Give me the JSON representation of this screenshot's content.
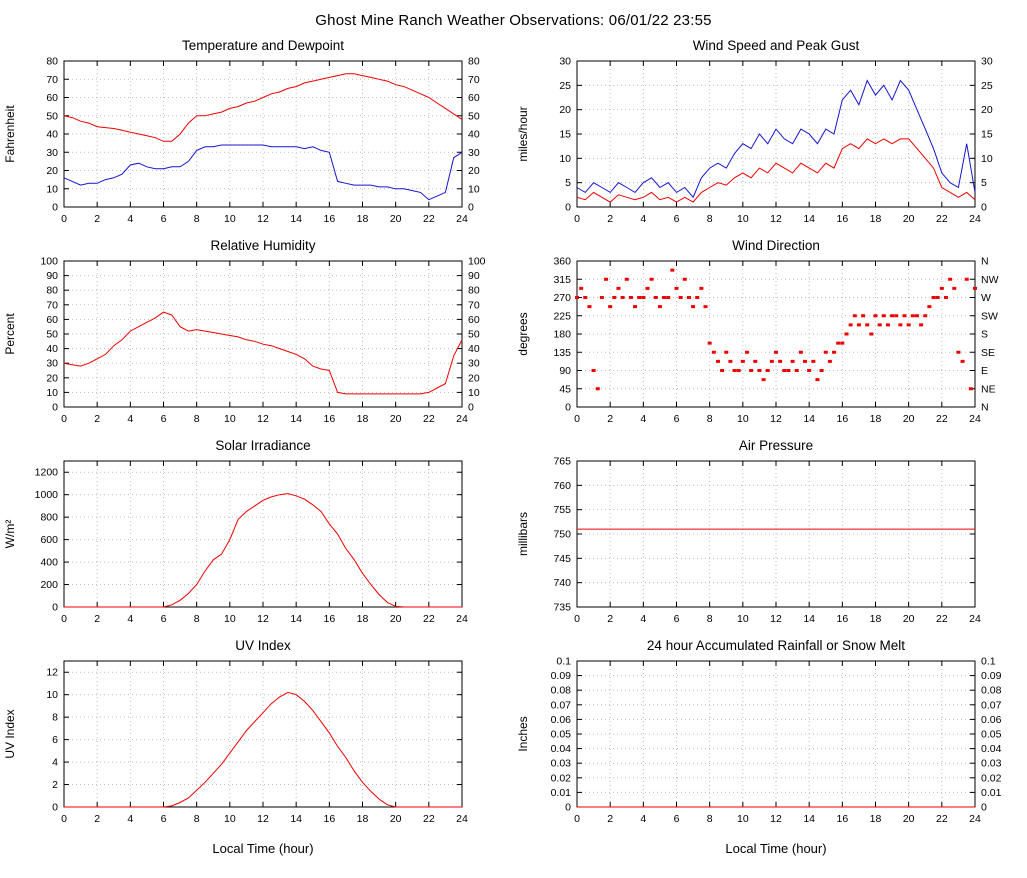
{
  "page_title": "Ghost Mine Ranch Weather Observations: 06/01/22 23:55",
  "x_axis_label": "Local Time (hour)",
  "colors": {
    "red": "#ee0000",
    "blue": "#1515d0",
    "grid": "#bdbdbd",
    "frame": "#000000",
    "text": "#000000"
  },
  "chart_data": [
    {
      "type": "line",
      "title": "Temperature and Dewpoint",
      "ylabel": "Fahrenheit",
      "xlim": [
        0,
        24
      ],
      "xticks": [
        0,
        2,
        4,
        6,
        8,
        10,
        12,
        14,
        16,
        18,
        20,
        22,
        24
      ],
      "ylim": [
        0,
        80
      ],
      "yticks": [
        0,
        10,
        20,
        30,
        40,
        50,
        60,
        70,
        80
      ],
      "mirror_y_labels": true,
      "show_xlabel": false,
      "series": [
        {
          "name": "Temperature",
          "color": "red",
          "x_step": 0.5,
          "y": [
            50,
            49,
            47,
            46,
            44,
            43.5,
            43,
            42,
            41,
            40,
            39,
            38,
            36,
            36,
            40,
            46,
            50,
            50,
            51,
            52,
            54,
            55,
            57,
            58,
            60,
            62,
            63,
            65,
            66,
            68,
            69,
            70,
            71,
            72,
            73,
            73,
            72,
            71,
            70,
            69,
            67,
            66,
            64,
            62,
            60,
            57,
            54,
            51,
            48
          ]
        },
        {
          "name": "Dewpoint",
          "color": "blue",
          "x_step": 0.5,
          "y": [
            16,
            14,
            12,
            13,
            13,
            15,
            16,
            18,
            23,
            24,
            22,
            21,
            21,
            22,
            22,
            25,
            31,
            33,
            33,
            34,
            34,
            34,
            34,
            34,
            34,
            33,
            33,
            33,
            33,
            32,
            33,
            31,
            30,
            14,
            13,
            12,
            12,
            12,
            11,
            11,
            10,
            10,
            9,
            8,
            4,
            6,
            8,
            27,
            30
          ]
        }
      ]
    },
    {
      "type": "line",
      "title": "Wind Speed and Peak Gust",
      "ylabel": "miles/hour",
      "xlim": [
        0,
        24
      ],
      "xticks": [
        0,
        2,
        4,
        6,
        8,
        10,
        12,
        14,
        16,
        18,
        20,
        22,
        24
      ],
      "ylim": [
        0,
        30
      ],
      "yticks": [
        0,
        5,
        10,
        15,
        20,
        25,
        30
      ],
      "mirror_y_labels": true,
      "show_xlabel": false,
      "series": [
        {
          "name": "Wind Speed",
          "color": "red",
          "x_step": 0.5,
          "y": [
            2,
            1.5,
            3,
            2,
            1,
            2.5,
            2,
            1.5,
            2,
            3,
            1.5,
            2,
            1,
            2,
            1,
            3,
            4,
            5,
            4.5,
            6,
            7,
            6,
            8,
            7,
            9,
            8,
            7,
            9,
            8,
            7,
            9,
            8,
            12,
            13,
            12,
            14,
            13,
            14,
            13,
            14,
            14,
            12,
            10,
            8,
            4,
            3,
            2,
            3,
            1.5
          ]
        },
        {
          "name": "Peak Gust",
          "color": "blue",
          "x_step": 0.5,
          "y": [
            4,
            3,
            5,
            4,
            3,
            5,
            4,
            3,
            5,
            6,
            4,
            5,
            3,
            4,
            2,
            6,
            8,
            9,
            8,
            11,
            13,
            12,
            15,
            13,
            16,
            14,
            13,
            16,
            15,
            13,
            16,
            15,
            22,
            24,
            21,
            26,
            23,
            25,
            22,
            26,
            24,
            20,
            16,
            12,
            7,
            5,
            4,
            13,
            3
          ]
        }
      ]
    },
    {
      "type": "line",
      "title": "Relative Humidity",
      "ylabel": "Percent",
      "xlim": [
        0,
        24
      ],
      "xticks": [
        0,
        2,
        4,
        6,
        8,
        10,
        12,
        14,
        16,
        18,
        20,
        22,
        24
      ],
      "ylim": [
        0,
        100
      ],
      "yticks": [
        0,
        10,
        20,
        30,
        40,
        50,
        60,
        70,
        80,
        90,
        100
      ],
      "mirror_y_labels": true,
      "show_xlabel": false,
      "series": [
        {
          "name": "Relative Humidity",
          "color": "red",
          "x_step": 0.5,
          "y": [
            30,
            29,
            28,
            30,
            33,
            36,
            42,
            46,
            52,
            55,
            58,
            61,
            65,
            63,
            55,
            52,
            53,
            52,
            51,
            50,
            49,
            48,
            46,
            45,
            43,
            42,
            40,
            38,
            36,
            33,
            28,
            26,
            25,
            10,
            9,
            9,
            9,
            9,
            9,
            9,
            9,
            9,
            9,
            9,
            10,
            13,
            16,
            35,
            46
          ]
        }
      ]
    },
    {
      "type": "scatter",
      "title": "Wind Direction",
      "ylabel": "degrees",
      "xlim": [
        0,
        24
      ],
      "xticks": [
        0,
        2,
        4,
        6,
        8,
        10,
        12,
        14,
        16,
        18,
        20,
        22,
        24
      ],
      "ylim": [
        0,
        360
      ],
      "yticks": [
        0,
        45,
        90,
        135,
        180,
        225,
        270,
        315,
        360
      ],
      "mirror_y_labels": false,
      "right_tick_labels": [
        "N",
        "NE",
        "E",
        "SE",
        "S",
        "SW",
        "W",
        "NW",
        "N"
      ],
      "show_xlabel": false,
      "series": [
        {
          "name": "Wind Direction",
          "color": "red",
          "x_step": 0.25,
          "y": [
            270,
            292.5,
            270,
            247.5,
            90,
            45,
            270,
            315,
            247.5,
            270,
            292.5,
            270,
            315,
            270,
            247.5,
            270,
            270,
            292.5,
            315,
            270,
            247.5,
            270,
            270,
            337.5,
            292.5,
            270,
            315,
            270,
            247.5,
            270,
            292.5,
            247.5,
            157.5,
            135,
            112.5,
            90,
            135,
            112.5,
            90,
            90,
            112.5,
            135,
            90,
            112.5,
            90,
            67.5,
            90,
            112.5,
            135,
            112.5,
            90,
            90,
            112.5,
            90,
            135,
            112.5,
            90,
            112.5,
            67.5,
            90,
            135,
            112.5,
            135,
            157.5,
            157.5,
            180,
            202.5,
            225,
            202.5,
            225,
            202.5,
            180,
            225,
            202.5,
            225,
            202.5,
            225,
            225,
            202.5,
            225,
            202.5,
            225,
            225,
            202.5,
            225,
            247.5,
            270,
            270,
            292.5,
            270,
            315,
            292.5,
            135,
            112.5,
            315,
            45,
            292.5
          ]
        }
      ]
    },
    {
      "type": "line",
      "title": "Solar Irradiance",
      "ylabel": "W/m²",
      "xlim": [
        0,
        24
      ],
      "xticks": [
        0,
        2,
        4,
        6,
        8,
        10,
        12,
        14,
        16,
        18,
        20,
        22,
        24
      ],
      "ylim": [
        0,
        1300
      ],
      "yticks": [
        0,
        200,
        400,
        600,
        800,
        1000,
        1200
      ],
      "mirror_y_labels": false,
      "show_xlabel": false,
      "series": [
        {
          "name": "Solar Irradiance",
          "color": "red",
          "x_step": 0.5,
          "y": [
            0,
            0,
            0,
            0,
            0,
            0,
            0,
            0,
            0,
            0,
            0,
            0,
            0,
            20,
            60,
            120,
            200,
            320,
            420,
            470,
            600,
            780,
            850,
            900,
            950,
            980,
            1000,
            1010,
            990,
            960,
            910,
            850,
            740,
            650,
            520,
            420,
            300,
            200,
            110,
            40,
            5,
            0,
            0,
            0,
            0,
            0,
            0,
            0,
            0
          ]
        }
      ]
    },
    {
      "type": "line",
      "title": "Air Pressure",
      "ylabel": "millibars",
      "xlim": [
        0,
        24
      ],
      "xticks": [
        0,
        2,
        4,
        6,
        8,
        10,
        12,
        14,
        16,
        18,
        20,
        22,
        24
      ],
      "ylim": [
        735,
        765
      ],
      "yticks": [
        735,
        740,
        745,
        750,
        755,
        760,
        765
      ],
      "mirror_y_labels": false,
      "show_xlabel": false,
      "series": [
        {
          "name": "Air Pressure",
          "color": "red",
          "x_step": 24,
          "y": [
            751,
            751
          ]
        }
      ]
    },
    {
      "type": "line",
      "title": "UV Index",
      "ylabel": "UV Index",
      "xlim": [
        0,
        24
      ],
      "xticks": [
        0,
        2,
        4,
        6,
        8,
        10,
        12,
        14,
        16,
        18,
        20,
        22,
        24
      ],
      "ylim": [
        0,
        13
      ],
      "yticks": [
        0,
        2,
        4,
        6,
        8,
        10,
        12
      ],
      "mirror_y_labels": false,
      "show_xlabel": true,
      "series": [
        {
          "name": "UV Index",
          "color": "red",
          "x_step": 0.5,
          "y": [
            0,
            0,
            0,
            0,
            0,
            0,
            0,
            0,
            0,
            0,
            0,
            0,
            0,
            0.1,
            0.4,
            0.8,
            1.5,
            2.2,
            3,
            3.8,
            4.8,
            5.8,
            6.8,
            7.6,
            8.4,
            9.2,
            9.8,
            10.2,
            10,
            9.4,
            8.6,
            7.6,
            6.6,
            5.4,
            4.4,
            3.2,
            2.2,
            1.4,
            0.7,
            0.2,
            0,
            0,
            0,
            0,
            0,
            0,
            0,
            0,
            0
          ]
        }
      ]
    },
    {
      "type": "line",
      "title": "24 hour Accumulated Rainfall or Snow Melt",
      "ylabel": "Inches",
      "xlim": [
        0,
        24
      ],
      "xticks": [
        0,
        2,
        4,
        6,
        8,
        10,
        12,
        14,
        16,
        18,
        20,
        22,
        24
      ],
      "ylim": [
        0,
        0.1
      ],
      "yticks": [
        0,
        0.01,
        0.02,
        0.03,
        0.04,
        0.05,
        0.06,
        0.07,
        0.08,
        0.09,
        0.1
      ],
      "mirror_y_labels": true,
      "show_xlabel": true,
      "series": [
        {
          "name": "Accumulated Rainfall",
          "color": "red",
          "x_step": 24,
          "y": [
            0,
            0
          ]
        }
      ]
    }
  ]
}
